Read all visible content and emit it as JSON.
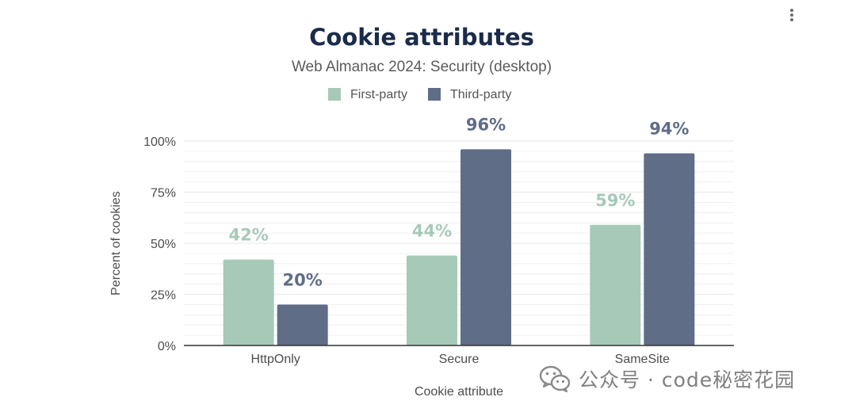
{
  "menu": {
    "icon": "more-vertical-icon"
  },
  "watermark": {
    "icon": "wechat-icon",
    "text": "公众号 · code秘密花园"
  },
  "colors": {
    "first_party": "#a6c9b8",
    "third_party": "#5f6d87",
    "title": "#1b2b4b",
    "subtitle": "#5b5b5b",
    "axis_text": "#4d4d4d",
    "grid": "#ececec",
    "axis_line": "#333333"
  },
  "chart_data": {
    "type": "bar",
    "title": "Cookie attributes",
    "subtitle": "Web Almanac 2024: Security (desktop)",
    "xlabel": "Cookie attribute",
    "ylabel": "Percent of cookies",
    "categories": [
      "HttpOnly",
      "Secure",
      "SameSite"
    ],
    "series": [
      {
        "name": "First-party",
        "values": [
          42,
          44,
          59
        ],
        "labels": [
          "42%",
          "44%",
          "59%"
        ]
      },
      {
        "name": "Third-party",
        "values": [
          20,
          96,
          94
        ],
        "labels": [
          "20%",
          "96%",
          "94%"
        ]
      }
    ],
    "ylim": [
      0,
      100
    ],
    "yticks": [
      0,
      25,
      50,
      75,
      100
    ],
    "ytick_labels": [
      "0%",
      "25%",
      "50%",
      "75%",
      "100%"
    ],
    "grid": true,
    "legend": "top-center"
  }
}
